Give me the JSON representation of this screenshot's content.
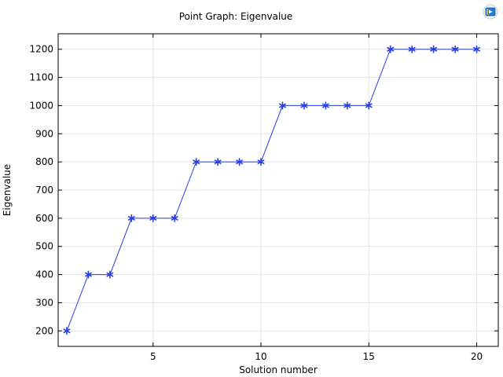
{
  "chart_data": {
    "type": "line",
    "title": "Point Graph: Eigenvalue",
    "xlabel": "Solution number",
    "ylabel": "Eigenvalue",
    "xlim": [
      0.6,
      21.0
    ],
    "ylim": [
      145,
      1255
    ],
    "xticks": [
      5,
      10,
      15,
      20
    ],
    "yticks": [
      200,
      300,
      400,
      500,
      600,
      700,
      800,
      900,
      1000,
      1100,
      1200
    ],
    "grid": true,
    "series": [
      {
        "color": "#2a3de0",
        "marker": "asterisk",
        "x": [
          1,
          2,
          3,
          4,
          5,
          6,
          7,
          8,
          9,
          10,
          11,
          12,
          13,
          14,
          15,
          16,
          17,
          18,
          19,
          20
        ],
        "y": [
          200,
          400,
          400,
          600,
          600,
          600,
          800,
          800,
          800,
          800,
          1000,
          1000,
          1000,
          1000,
          1000,
          1200,
          1200,
          1200,
          1200,
          1200
        ]
      }
    ]
  },
  "toolbar": {
    "icon": "export-icon"
  }
}
